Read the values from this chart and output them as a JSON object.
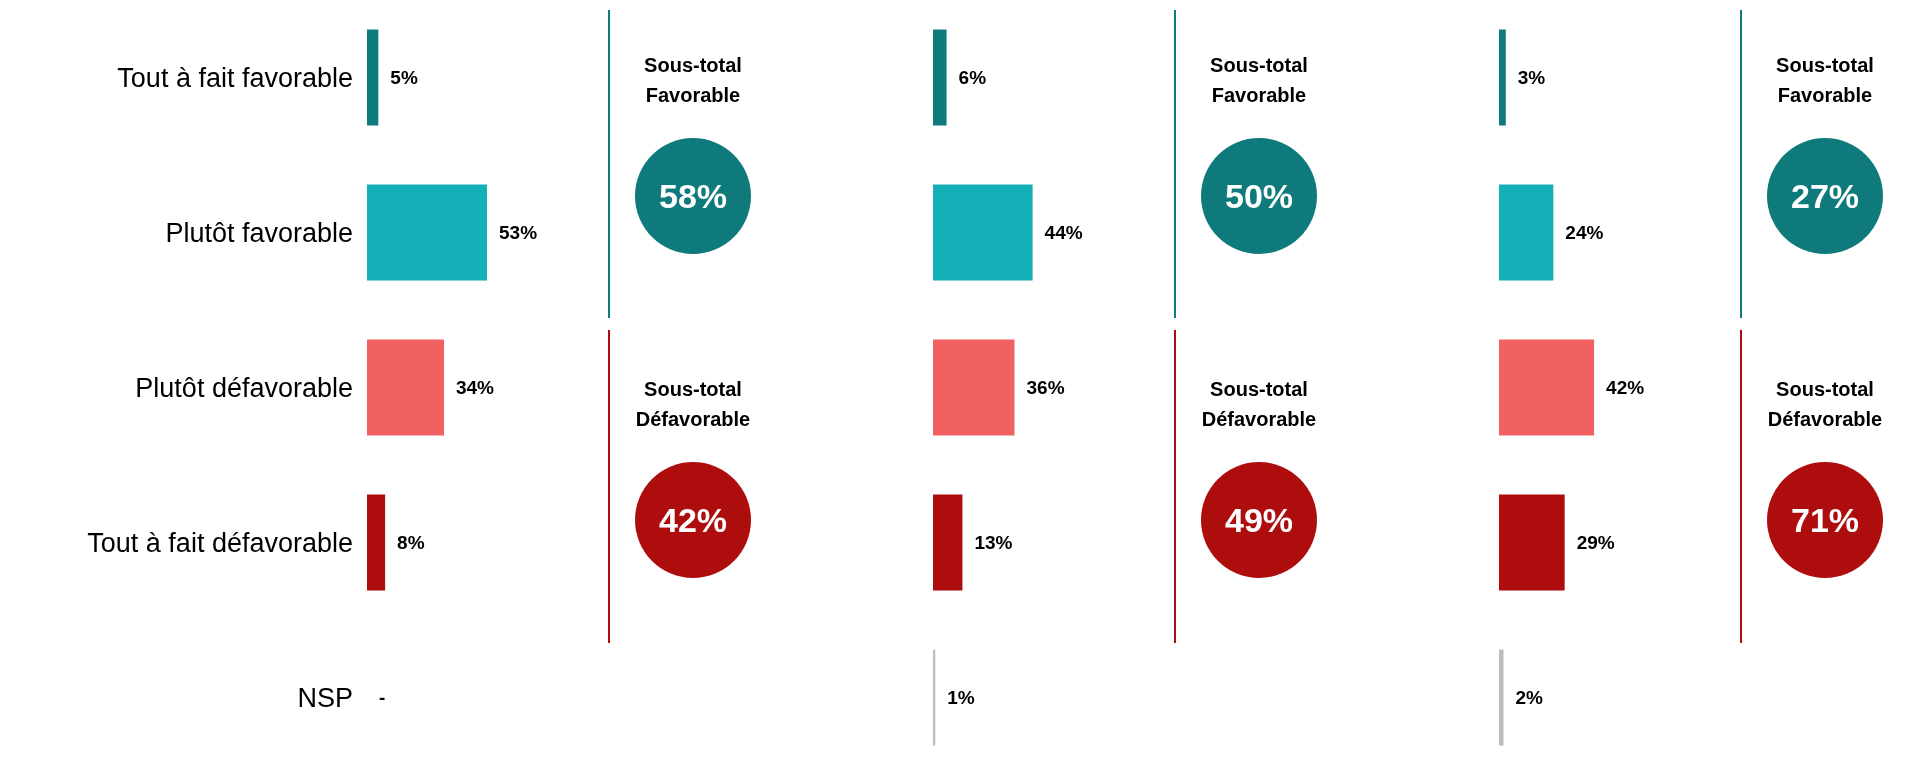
{
  "chart_data": [
    {
      "type": "bar",
      "orientation": "horizontal",
      "categories": [
        "Tout à fait favorable",
        "Plutôt favorable",
        "Plutôt défavorable",
        "Tout à fait défavorable",
        "NSP"
      ],
      "values": [
        5,
        53,
        34,
        8,
        null
      ],
      "colors": [
        "#0f7a7c",
        "#14b0b8",
        "#f26161",
        "#ad0d0d",
        "#bdbdbd"
      ],
      "value_labels": [
        "5%",
        "53%",
        "34%",
        "8%",
        "-"
      ],
      "tick_labels": "y",
      "annotations": [
        "Sous-total Favorable",
        "58%",
        "Sous-total Défavorable",
        "42%"
      ]
    },
    {
      "type": "bar",
      "orientation": "horizontal",
      "categories": [
        null,
        null,
        null,
        null,
        null
      ],
      "values": [
        6,
        44,
        36,
        13,
        1
      ],
      "colors": [
        "#0f7a7c",
        "#14b0b8",
        "#f26161",
        "#ad0d0d",
        "#bdbdbd"
      ],
      "value_labels": [
        "6%",
        "44%",
        "36%",
        "13%",
        "1%"
      ],
      "tick_labels": false,
      "annotations": [
        "Sous-total Favorable",
        "50%",
        "Sous-total Défavorable",
        "49%"
      ]
    },
    {
      "type": "bar",
      "orientation": "horizontal",
      "categories": [
        null,
        null,
        null,
        null,
        null
      ],
      "values": [
        3,
        24,
        42,
        29,
        2
      ],
      "colors": [
        "#0f7a7c",
        "#14b0b8",
        "#f26161",
        "#ad0d0d",
        "#bdbdbd"
      ],
      "value_labels": [
        "3%",
        "24%",
        "42%",
        "29%",
        "2%"
      ],
      "tick_labels": false,
      "annotations": [
        "Sous-total Favorable",
        "27%",
        "Sous-total Défavorable",
        "71%"
      ]
    }
  ]
}
